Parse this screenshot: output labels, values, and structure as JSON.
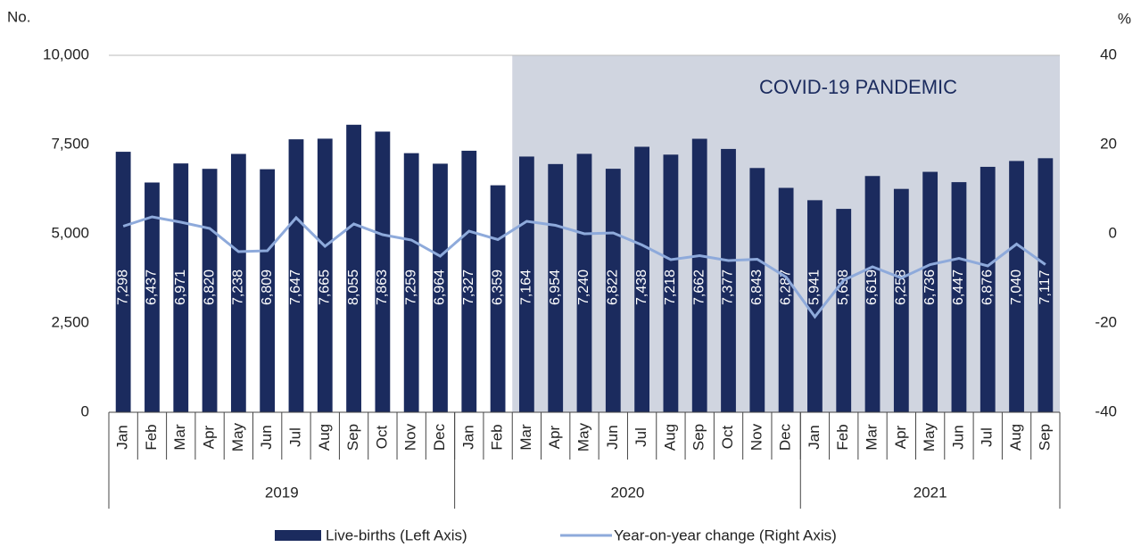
{
  "chart_data": {
    "type": "bar",
    "y_unit": "No.",
    "y2_unit": "%",
    "categories": [
      "Jan",
      "Feb",
      "Mar",
      "Apr",
      "May",
      "Jun",
      "Jul",
      "Aug",
      "Sep",
      "Oct",
      "Nov",
      "Dec",
      "Jan",
      "Feb",
      "Mar",
      "Apr",
      "May",
      "Jun",
      "Jul",
      "Aug",
      "Sep",
      "Oct",
      "Nov",
      "Dec",
      "Jan",
      "Feb",
      "Mar",
      "Apr",
      "May",
      "Jun",
      "Jul",
      "Aug",
      "Sep"
    ],
    "groups": [
      {
        "label": "2019",
        "count": 12
      },
      {
        "label": "2020",
        "count": 12
      },
      {
        "label": "2021",
        "count": 9
      }
    ],
    "annotation": {
      "text": "COVID-19 PANDEMIC",
      "start_index": 14,
      "color": "#d0d5e0"
    },
    "series": [
      {
        "name": "Live-births (Left Axis)",
        "type": "bar",
        "color": "#1b2b5e",
        "values": [
          7298,
          6437,
          6971,
          6820,
          7238,
          6809,
          7647,
          7665,
          8055,
          7863,
          7259,
          6964,
          7327,
          6359,
          7164,
          6954,
          7240,
          6822,
          7438,
          7218,
          7662,
          7377,
          6843,
          6287,
          5941,
          5698,
          6619,
          6258,
          6736,
          6447,
          6876,
          7040,
          7117
        ],
        "value_labels": [
          "7,298",
          "6,437",
          "6,971",
          "6,820",
          "7,238",
          "6,809",
          "7,647",
          "7,665",
          "8,055",
          "7,863",
          "7,259",
          "6,964",
          "7,327",
          "6,359",
          "7,164",
          "6,954",
          "7,240",
          "6,822",
          "7,438",
          "7,218",
          "7,662",
          "7,377",
          "6,843",
          "6,287",
          "5,941",
          "5,698",
          "6,619",
          "6,258",
          "6,736",
          "6,447",
          "6,876",
          "7,040",
          "7,117"
        ]
      },
      {
        "name": "Year-on-year change (Right Axis)",
        "type": "line",
        "axis": "y2",
        "color": "#8eaadb",
        "values": [
          1.7,
          3.8,
          2.6,
          1.2,
          -4.0,
          -3.8,
          3.6,
          -2.8,
          2.2,
          -0.2,
          -1.4,
          -5.0,
          0.6,
          -1.3,
          2.8,
          1.9,
          0.0,
          0.2,
          -2.5,
          -5.8,
          -4.9,
          -6.0,
          -5.7,
          -9.7,
          -18.6,
          -10.4,
          -7.4,
          -9.9,
          -6.9,
          -5.5,
          -7.2,
          -2.3,
          -6.9
        ]
      }
    ],
    "ylim": [
      0,
      10000
    ],
    "yticks": [
      0,
      {
        "value": 2500,
        "label": "2,500"
      },
      {
        "value": 5000,
        "label": "5,000"
      },
      {
        "value": 7500,
        "label": "7,500"
      },
      {
        "value": 10000,
        "label": "10,000"
      }
    ],
    "y2lim": [
      -40,
      40
    ],
    "y2ticks": [
      -40,
      -20,
      0,
      20,
      40
    ],
    "legend": "bottom"
  }
}
